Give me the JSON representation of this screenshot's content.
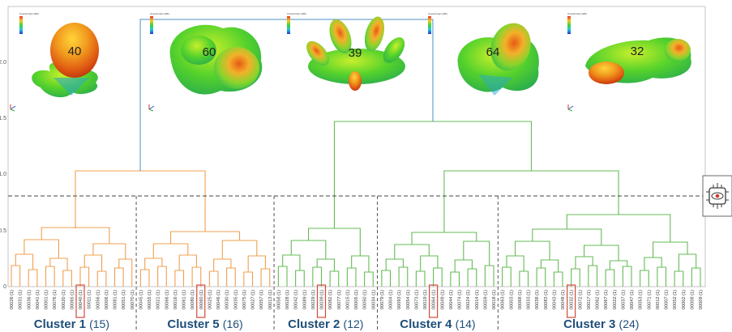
{
  "y_axis": {
    "ticks": [
      "0",
      "0.5",
      "1.0",
      "1.5",
      "2.0"
    ]
  },
  "threshold": 0.8,
  "legend_title": "Overall Gain (dBi)",
  "patterns": [
    {
      "label": "40",
      "icon": "radiation-pattern-3d"
    },
    {
      "label": "60",
      "icon": "radiation-pattern-3d"
    },
    {
      "label": "39",
      "icon": "radiation-pattern-3d"
    },
    {
      "label": "64",
      "icon": "radiation-pattern-3d"
    },
    {
      "label": "32",
      "icon": "radiation-pattern-3d"
    }
  ],
  "clusters": [
    {
      "name": "Cluster 1",
      "count": "(15)",
      "color": "#f0a050",
      "leaves": [
        "00026 (1)",
        "00031 (1)",
        "00036 (1)",
        "00041 (1)",
        "00001 (1)",
        "00076 (1)",
        "00020 (1)",
        "00065 (1)",
        "00040 (1)",
        "00011 (1)",
        "00056 (1)",
        "00006 (1)",
        "00081 (1)",
        "00051 (1)",
        "00070 (1)"
      ],
      "highlight": "00040 (1)"
    },
    {
      "name": "Cluster 5",
      "count": "(16)",
      "color": "#f0a050",
      "leaves": [
        "00045 (1)",
        "00055 (1)",
        "00021 (1)",
        "00066 (1)",
        "00016 (1)",
        "00061 (1)",
        "00080 (1)",
        "00060 (1)",
        "00025 (1)",
        "00046 (1)",
        "00030 (1)",
        "00035 (1)",
        "00075 (1)",
        "00027 (1)",
        "00057 (1)",
        "00013 (1)"
      ],
      "highlight": "00060 (1)"
    },
    {
      "name": "Cluster 2",
      "count": "(12)",
      "color": "#66bb55",
      "leaves": [
        "00058 (1)",
        "00028 (1)",
        "00042 (1)",
        "00089 (1)",
        "00029 (1)",
        "00039 (1)",
        "00082 (1)",
        "00077 (1)",
        "00015 (1)",
        "00005 (1)",
        "00050 (1)",
        "00034 (1)"
      ],
      "highlight": "00039 (1)"
    },
    {
      "name": "Cluster 4",
      "count": "(14)",
      "color": "#66bb55",
      "leaves": [
        "00079 (1)",
        "00004 (1)",
        "00093 (1)",
        "00054 (1)",
        "00073 (1)",
        "00019 (1)",
        "00064 (1)",
        "00049 (1)",
        "00044 (1)",
        "00074 (1)",
        "00024 (1)",
        "00014 (1)",
        "00059 (1)",
        "00018 (1)"
      ],
      "highlight": "00064 (1)"
    },
    {
      "name": "Cluster 3",
      "count": "(24)",
      "color": "#66bb55",
      "leaves": [
        "00063 (1)",
        "00003 (1)",
        "00068 (1)",
        "00033 (1)",
        "00038 (1)",
        "00083 (1)",
        "00043 (1)",
        "00048 (1)",
        "00032 (1)",
        "00072 (1)",
        "00017 (1)",
        "00062 (1)",
        "00067 (1)",
        "00022 (1)",
        "00037 (1)",
        "00047 (1)",
        "00053 (1)",
        "00071 (1)",
        "00012 (1)",
        "00007 (1)",
        "00052 (1)",
        "00002 (1)",
        "00008 (1)",
        "00009 (1)"
      ],
      "highlight": "00032 (1)"
    }
  ],
  "colors": {
    "orange_branch": "#f0a050",
    "green_branch": "#66bb55",
    "root_branch": "#4a90c8",
    "highlight_box": "#d04a3a",
    "cluster_text": "#1f4e79",
    "threshold_line": "#444444"
  },
  "badge_icon": "ai-chip-eye-icon"
}
